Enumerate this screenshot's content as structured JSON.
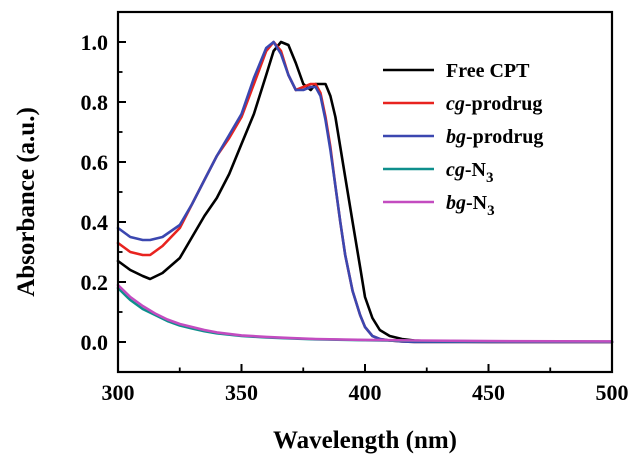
{
  "chart_data": {
    "type": "line",
    "title": "",
    "xlabel": "Wavelength (nm)",
    "ylabel": "Absorbance (a.u.)",
    "xlim": [
      300,
      500
    ],
    "ylim": [
      -0.1,
      1.1
    ],
    "xticks": [
      "300",
      "350",
      "400",
      "450",
      "500"
    ],
    "yticks": [
      "0.0",
      "0.2",
      "0.4",
      "0.6",
      "0.8",
      "1.0"
    ],
    "legend_position": "top-right",
    "grid": false,
    "series": [
      {
        "name": "Free CPT",
        "legend_prefix": "",
        "legend_main": "Free CPT",
        "legend_sub": "",
        "color": "#000000",
        "x": [
          300,
          305,
          310,
          313,
          318,
          325,
          330,
          335,
          340,
          345,
          350,
          355,
          360,
          363,
          366,
          369,
          372,
          375,
          378,
          380,
          382,
          384,
          386,
          388,
          390,
          392,
          395,
          398,
          400,
          403,
          406,
          410,
          415,
          420,
          430,
          450,
          500
        ],
        "y": [
          0.27,
          0.24,
          0.22,
          0.21,
          0.23,
          0.28,
          0.35,
          0.42,
          0.48,
          0.56,
          0.66,
          0.76,
          0.89,
          0.97,
          1.0,
          0.99,
          0.93,
          0.86,
          0.84,
          0.86,
          0.86,
          0.86,
          0.82,
          0.75,
          0.65,
          0.55,
          0.4,
          0.25,
          0.15,
          0.08,
          0.04,
          0.02,
          0.01,
          0.005,
          0.002,
          0.0,
          0.0
        ]
      },
      {
        "name": "cg-prodrug",
        "legend_prefix": "cg",
        "legend_main": "-prodrug",
        "legend_sub": "",
        "color": "#e8231f",
        "x": [
          300,
          305,
          310,
          313,
          318,
          325,
          330,
          335,
          340,
          345,
          350,
          355,
          360,
          363,
          366,
          369,
          372,
          375,
          378,
          380,
          382,
          384,
          386,
          388,
          390,
          392,
          395,
          398,
          400,
          403,
          406,
          410,
          415,
          420,
          430,
          450,
          500
        ],
        "y": [
          0.33,
          0.3,
          0.29,
          0.29,
          0.32,
          0.38,
          0.46,
          0.54,
          0.62,
          0.68,
          0.75,
          0.86,
          0.97,
          1.0,
          0.97,
          0.89,
          0.84,
          0.85,
          0.86,
          0.86,
          0.83,
          0.75,
          0.65,
          0.52,
          0.4,
          0.29,
          0.17,
          0.09,
          0.05,
          0.02,
          0.01,
          0.005,
          0.002,
          0.0,
          0.0,
          0.0,
          0.0
        ]
      },
      {
        "name": "bg-prodrug",
        "legend_prefix": "bg",
        "legend_main": "-prodrug",
        "legend_sub": "",
        "color": "#3b47b0",
        "x": [
          300,
          305,
          310,
          313,
          318,
          325,
          330,
          335,
          340,
          345,
          350,
          355,
          360,
          363,
          366,
          369,
          372,
          375,
          378,
          380,
          382,
          384,
          386,
          388,
          390,
          392,
          395,
          398,
          400,
          403,
          406,
          410,
          415,
          420,
          430,
          450,
          500
        ],
        "y": [
          0.38,
          0.35,
          0.34,
          0.34,
          0.35,
          0.39,
          0.46,
          0.54,
          0.62,
          0.69,
          0.76,
          0.88,
          0.98,
          1.0,
          0.96,
          0.89,
          0.84,
          0.84,
          0.85,
          0.85,
          0.82,
          0.74,
          0.64,
          0.52,
          0.4,
          0.29,
          0.17,
          0.09,
          0.05,
          0.02,
          0.01,
          0.005,
          0.002,
          0.0,
          0.0,
          0.0,
          0.0
        ]
      },
      {
        "name": "cg-N3",
        "legend_prefix": "cg",
        "legend_main": "-N",
        "legend_sub": "3",
        "color": "#0e8f8c",
        "x": [
          300,
          305,
          310,
          315,
          320,
          325,
          330,
          335,
          340,
          350,
          360,
          370,
          380,
          400,
          420,
          450,
          500
        ],
        "y": [
          0.18,
          0.14,
          0.11,
          0.09,
          0.07,
          0.055,
          0.045,
          0.036,
          0.029,
          0.02,
          0.015,
          0.012,
          0.009,
          0.006,
          0.004,
          0.002,
          0.001
        ]
      },
      {
        "name": "bg-N3",
        "legend_prefix": "bg",
        "legend_main": "-N",
        "legend_sub": "3",
        "color": "#c34cc0",
        "x": [
          300,
          305,
          310,
          315,
          320,
          325,
          330,
          335,
          340,
          350,
          360,
          370,
          380,
          400,
          420,
          450,
          500
        ],
        "y": [
          0.19,
          0.15,
          0.12,
          0.095,
          0.075,
          0.06,
          0.05,
          0.04,
          0.032,
          0.022,
          0.017,
          0.013,
          0.01,
          0.007,
          0.005,
          0.003,
          0.002
        ]
      }
    ]
  }
}
